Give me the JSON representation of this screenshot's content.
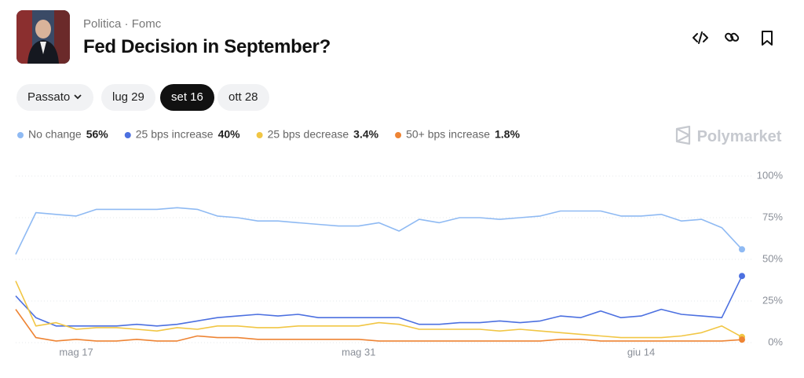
{
  "header": {
    "category": "Politica",
    "subcategory": "Fomc",
    "title": "Fed Decision in September?"
  },
  "buttons": [
    "Passato",
    "lug 29",
    "set 16",
    "ott 28"
  ],
  "brand": "Polymarket",
  "chart_data": {
    "type": "line",
    "categories": [
      null,
      null,
      null,
      "mag 17",
      null,
      null,
      null,
      null,
      null,
      null,
      null,
      null,
      null,
      null,
      null,
      null,
      null,
      "mag 31",
      null,
      null,
      null,
      null,
      null,
      null,
      null,
      null,
      null,
      null,
      null,
      null,
      null,
      "giu 14",
      null,
      null,
      null,
      null,
      null
    ],
    "series": [
      {
        "name": "No change",
        "color": "#8fbaf3",
        "current_label": "56%",
        "values": [
          53,
          78,
          77,
          76,
          80,
          80,
          80,
          80,
          81,
          80,
          76,
          75,
          73,
          73,
          72,
          71,
          70,
          70,
          72,
          67,
          74,
          72,
          75,
          75,
          74,
          75,
          76,
          79,
          79,
          79,
          76,
          76,
          77,
          73,
          74,
          69,
          56
        ]
      },
      {
        "name": "25 bps increase",
        "color": "#4c70e0",
        "current_label": "40%",
        "values": [
          28,
          15,
          10,
          10,
          10,
          10,
          11,
          10,
          11,
          13,
          15,
          16,
          17,
          16,
          17,
          15,
          15,
          15,
          15,
          15,
          11,
          11,
          12,
          12,
          13,
          12,
          13,
          16,
          15,
          19,
          15,
          16,
          20,
          17,
          16,
          15,
          40
        ]
      },
      {
        "name": "25 bps decrease",
        "color": "#f1c644",
        "current_label": "3.4%",
        "values": [
          37,
          10,
          12,
          8,
          9,
          9,
          8,
          7,
          9,
          8,
          10,
          10,
          9,
          9,
          10,
          10,
          10,
          10,
          12,
          11,
          8,
          8,
          8,
          8,
          7,
          8,
          7,
          6,
          5,
          4,
          3,
          3,
          3,
          4,
          6,
          10,
          3.4
        ]
      },
      {
        "name": "50+ bps increase",
        "color": "#ee8434",
        "current_label": "1.8%",
        "values": [
          20,
          3,
          1,
          2,
          1,
          1,
          2,
          1,
          1,
          4,
          3,
          3,
          2,
          2,
          2,
          2,
          2,
          2,
          1,
          1,
          1,
          1,
          1,
          1,
          1,
          1,
          1,
          2,
          2,
          1,
          1,
          1,
          1,
          1,
          1,
          1,
          1.8
        ]
      }
    ],
    "ylim": [
      0,
      100
    ],
    "yticks": [
      {
        "value": 0,
        "label": "0%"
      },
      {
        "value": 25,
        "label": "25%"
      },
      {
        "value": 50,
        "label": "50%"
      },
      {
        "value": 75,
        "label": "75%"
      },
      {
        "value": 100,
        "label": "100%"
      }
    ],
    "grid": true
  }
}
